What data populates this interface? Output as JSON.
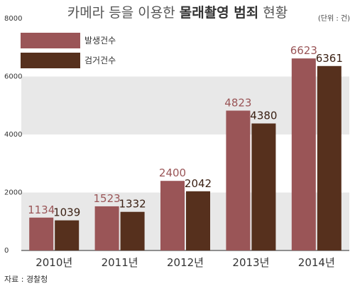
{
  "chart_data": {
    "type": "bar",
    "title_prefix": "카메라 등을 이용한 ",
    "title_bold": "몰래촬영 범죄",
    "title_suffix": " 현황",
    "unit": "(단위 : 건)",
    "categories": [
      "2010년",
      "2011년",
      "2012년",
      "2013년",
      "2014년"
    ],
    "series": [
      {
        "name": "발생건수",
        "color": "#9a5557",
        "values": [
          1134,
          1523,
          2400,
          4823,
          6623
        ]
      },
      {
        "name": "검거건수",
        "color": "#56301d",
        "values": [
          1039,
          1332,
          2042,
          4380,
          6361
        ]
      }
    ],
    "ylim": [
      0,
      8000
    ],
    "yticks": [
      "0",
      "2000",
      "4000",
      "6000",
      "8000"
    ],
    "band_color": "#e8e8e8",
    "legend_position": "top-left",
    "source": "자료 : 경찰청"
  }
}
